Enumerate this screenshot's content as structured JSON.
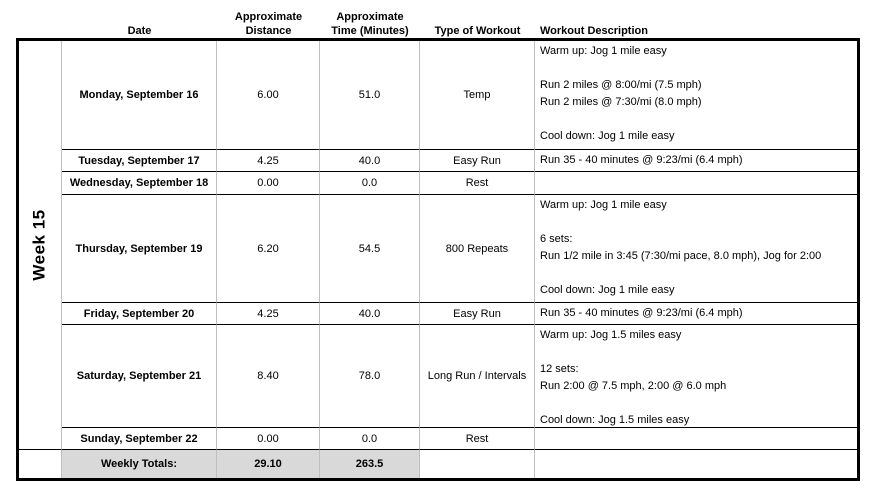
{
  "week_label": "Week 15",
  "headers": {
    "date": "Date",
    "distance": "Approximate\nDistance",
    "time": "Approximate\nTime (Minutes)",
    "type": "Type of Workout",
    "description": "Workout Description"
  },
  "rows": [
    {
      "date": "Monday, September 16",
      "distance": "6.00",
      "time": "51.0",
      "type": "Temp",
      "description": "Warm up: Jog 1 mile easy\n\nRun 2 miles @ 8:00/mi (7.5 mph)\nRun 2 miles @ 7:30/mi (8.0 mph)\n\nCool down: Jog 1 mile easy"
    },
    {
      "date": "Tuesday, September 17",
      "distance": "4.25",
      "time": "40.0",
      "type": "Easy Run",
      "description": "Run 35 - 40 minutes @ 9:23/mi (6.4 mph)"
    },
    {
      "date": "Wednesday, September 18",
      "distance": "0.00",
      "time": "0.0",
      "type": "Rest",
      "description": ""
    },
    {
      "date": "Thursday, September 19",
      "distance": "6.20",
      "time": "54.5",
      "type": "800 Repeats",
      "description": "Warm up: Jog 1 mile easy\n\n6 sets:\nRun 1/2 mile in 3:45 (7:30/mi pace, 8.0 mph), Jog for 2:00\n\nCool down: Jog 1 mile easy"
    },
    {
      "date": "Friday, September 20",
      "distance": "4.25",
      "time": "40.0",
      "type": "Easy Run",
      "description": "Run 35 - 40 minutes @ 9:23/mi (6.4 mph)"
    },
    {
      "date": "Saturday, September 21",
      "distance": "8.40",
      "time": "78.0",
      "type": "Long Run / Intervals",
      "description": "Warm up: Jog 1.5 miles easy\n\n12 sets:\nRun 2:00 @ 7.5 mph, 2:00 @ 6.0 mph\n\nCool down: Jog 1.5 miles easy"
    },
    {
      "date": "Sunday, September 22",
      "distance": "0.00",
      "time": "0.0",
      "type": "Rest",
      "description": ""
    }
  ],
  "totals": {
    "label": "Weekly Totals:",
    "distance": "29.10",
    "time": "263.5"
  },
  "colors": {
    "totals_bg": "#d9d9d9",
    "grid_line": "#bfbfbf",
    "outer_border": "#000000",
    "text": "#000000"
  }
}
